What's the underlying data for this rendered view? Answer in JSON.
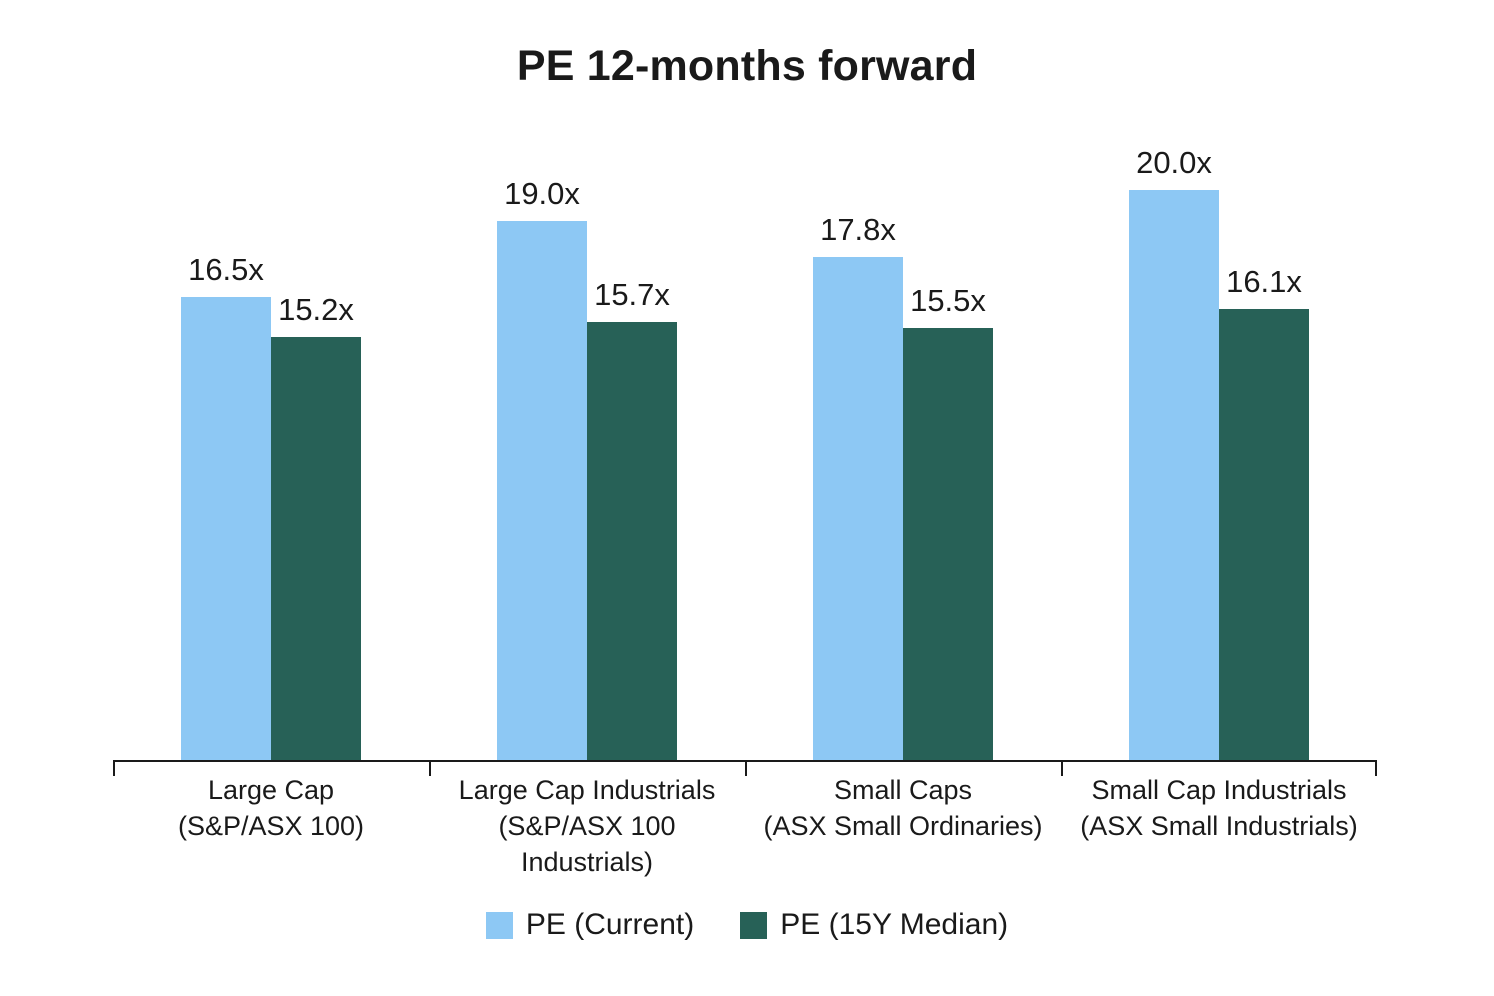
{
  "title": "PE 12-months forward",
  "colors": {
    "background": "#ffffff",
    "text": "#1a1a1a",
    "axis": "#1a1a1a",
    "pe_current": "#8DC8F4",
    "pe_15y_median": "#276157"
  },
  "chart_data": {
    "type": "bar",
    "title": "PE 12-months forward",
    "categories": [
      [
        "Large Cap",
        "(S&P/ASX 100)"
      ],
      [
        "Large Cap Industrials",
        "(S&P/ASX 100 Industrials)"
      ],
      [
        "Small Caps",
        "(ASX Small Ordinaries)"
      ],
      [
        "Small Cap Industrials",
        "(ASX Small Industrials)"
      ]
    ],
    "series": [
      {
        "name": "PE (Current)",
        "color": "#8DC8F4",
        "values": [
          16.5,
          19.0,
          17.8,
          20.0
        ],
        "value_labels": [
          "16.5x",
          "19.0x",
          "17.8x",
          "20.0x"
        ]
      },
      {
        "name": "PE (15Y Median)",
        "color": "#276157",
        "values": [
          15.2,
          15.7,
          15.5,
          16.1
        ],
        "value_labels": [
          "15.2x",
          "15.7x",
          "15.5x",
          "16.1x"
        ]
      }
    ],
    "ylim": [
      0,
      20
    ],
    "grid": false,
    "value_suffix": "x",
    "legend_position": "bottom"
  }
}
